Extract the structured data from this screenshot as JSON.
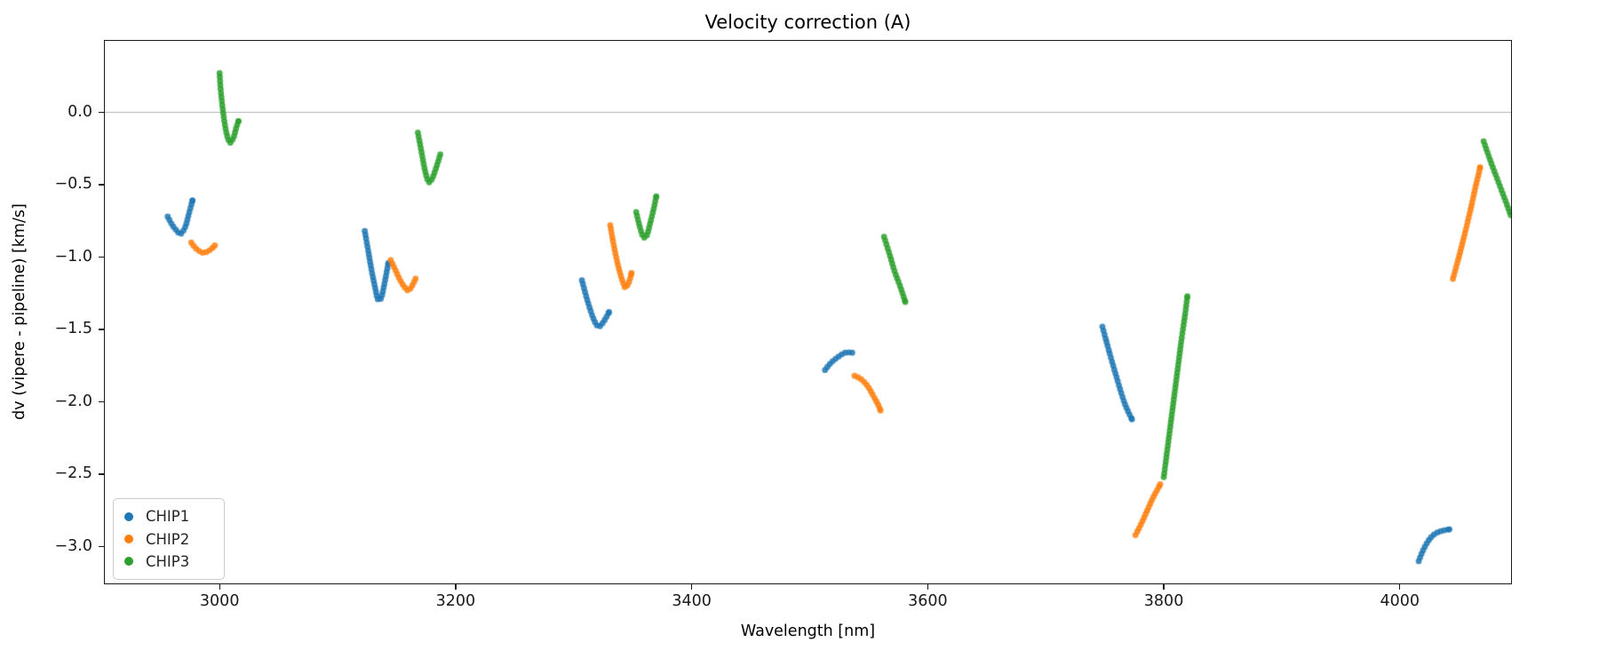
{
  "chart_data": {
    "type": "scatter",
    "title": "Velocity correction (A)",
    "xlabel": "Wavelength [nm]",
    "ylabel": "dv (vipere - pipeline) [km/s]",
    "xlim": [
      2902,
      4095
    ],
    "ylim": [
      -3.26,
      0.5
    ],
    "xtick_values": [
      3000,
      3200,
      3400,
      3600,
      3800,
      4000
    ],
    "xtick_labels": [
      "3000",
      "3200",
      "3400",
      "3600",
      "3800",
      "4000"
    ],
    "ytick_values": [
      0,
      -0.5,
      -1,
      -1.5,
      -2,
      -2.5,
      -3
    ],
    "ytick_labels": [
      "0.0",
      "−0.5",
      "−1.0",
      "−1.5",
      "−2.0",
      "−2.5",
      "−3.0"
    ],
    "grid": "off",
    "zero_line": {
      "y": 0,
      "color": "#b0b0b0"
    },
    "marker": {
      "radius": 3.4,
      "alpha": 0.85,
      "spacing_px": 4.2
    },
    "legend": {
      "position": "lower left",
      "labels": [
        "CHIP1",
        "CHIP2",
        "CHIP3"
      ]
    },
    "series": [
      {
        "name": "CHIP1",
        "color": "#1f77b4",
        "segments": [
          [
            [
              2956,
              -0.72
            ],
            [
              2960,
              -0.78
            ],
            [
              2964,
              -0.82
            ],
            [
              2967,
              -0.84
            ],
            [
              2971,
              -0.79
            ],
            [
              2974,
              -0.7
            ],
            [
              2977,
              -0.61
            ]
          ],
          [
            [
              3123,
              -0.82
            ],
            [
              3126,
              -0.96
            ],
            [
              3129,
              -1.1
            ],
            [
              3132,
              -1.22
            ],
            [
              3134,
              -1.29
            ],
            [
              3137,
              -1.28
            ],
            [
              3140,
              -1.17
            ],
            [
              3143,
              -1.04
            ]
          ],
          [
            [
              3307,
              -1.16
            ],
            [
              3312,
              -1.31
            ],
            [
              3317,
              -1.43
            ],
            [
              3321,
              -1.48
            ],
            [
              3325,
              -1.45
            ],
            [
              3330,
              -1.38
            ]
          ],
          [
            [
              3513,
              -1.78
            ],
            [
              3518,
              -1.73
            ],
            [
              3524,
              -1.69
            ],
            [
              3530,
              -1.66
            ],
            [
              3536,
              -1.66
            ]
          ],
          [
            [
              3748,
              -1.48
            ],
            [
              3754,
              -1.66
            ],
            [
              3760,
              -1.83
            ],
            [
              3766,
              -1.99
            ],
            [
              3770,
              -2.07
            ],
            [
              3773,
              -2.12
            ]
          ],
          [
            [
              4016,
              -3.1
            ],
            [
              4020,
              -3.02
            ],
            [
              4025,
              -2.95
            ],
            [
              4030,
              -2.91
            ],
            [
              4036,
              -2.89
            ],
            [
              4042,
              -2.88
            ]
          ]
        ]
      },
      {
        "name": "CHIP2",
        "color": "#ff7f0e",
        "segments": [
          [
            [
              2976,
              -0.9
            ],
            [
              2980,
              -0.94
            ],
            [
              2986,
              -0.97
            ],
            [
              2992,
              -0.95
            ],
            [
              2996,
              -0.92
            ]
          ],
          [
            [
              3145,
              -1.02
            ],
            [
              3149,
              -1.09
            ],
            [
              3153,
              -1.16
            ],
            [
              3157,
              -1.21
            ],
            [
              3160,
              -1.23
            ],
            [
              3163,
              -1.2
            ],
            [
              3166,
              -1.15
            ]
          ],
          [
            [
              3331,
              -0.78
            ],
            [
              3334,
              -0.92
            ],
            [
              3338,
              -1.07
            ],
            [
              3342,
              -1.18
            ],
            [
              3344,
              -1.21
            ],
            [
              3347,
              -1.17
            ],
            [
              3349,
              -1.11
            ]
          ],
          [
            [
              3538,
              -1.82
            ],
            [
              3543,
              -1.84
            ],
            [
              3549,
              -1.89
            ],
            [
              3554,
              -1.96
            ],
            [
              3558,
              -2.02
            ],
            [
              3560,
              -2.06
            ]
          ],
          [
            [
              3776,
              -2.92
            ],
            [
              3781,
              -2.84
            ],
            [
              3786,
              -2.75
            ],
            [
              3791,
              -2.66
            ],
            [
              3795,
              -2.6
            ],
            [
              3797,
              -2.57
            ]
          ],
          [
            [
              4045,
              -1.15
            ],
            [
              4050,
              -1.0
            ],
            [
              4055,
              -0.84
            ],
            [
              4060,
              -0.67
            ],
            [
              4064,
              -0.52
            ],
            [
              4067,
              -0.42
            ],
            [
              4068,
              -0.38
            ]
          ]
        ]
      },
      {
        "name": "CHIP3",
        "color": "#2ca02c",
        "segments": [
          [
            [
              3000,
              0.27
            ],
            [
              3001,
              0.15
            ],
            [
              3003,
              0.0
            ],
            [
              3005,
              -0.11
            ],
            [
              3007,
              -0.18
            ],
            [
              3009,
              -0.21
            ],
            [
              3012,
              -0.17
            ],
            [
              3014,
              -0.11
            ],
            [
              3016,
              -0.06
            ]
          ],
          [
            [
              3168,
              -0.14
            ],
            [
              3171,
              -0.27
            ],
            [
              3174,
              -0.4
            ],
            [
              3177,
              -0.48
            ],
            [
              3180,
              -0.46
            ],
            [
              3184,
              -0.37
            ],
            [
              3187,
              -0.29
            ]
          ],
          [
            [
              3353,
              -0.69
            ],
            [
              3356,
              -0.79
            ],
            [
              3359,
              -0.86
            ],
            [
              3362,
              -0.85
            ],
            [
              3365,
              -0.76
            ],
            [
              3368,
              -0.66
            ],
            [
              3370,
              -0.58
            ]
          ],
          [
            [
              3563,
              -0.86
            ],
            [
              3568,
              -0.99
            ],
            [
              3572,
              -1.1
            ],
            [
              3577,
              -1.21
            ],
            [
              3581,
              -1.31
            ]
          ],
          [
            [
              3800,
              -2.52
            ],
            [
              3803,
              -2.33
            ],
            [
              3806,
              -2.14
            ],
            [
              3809,
              -1.95
            ],
            [
              3812,
              -1.76
            ],
            [
              3815,
              -1.57
            ],
            [
              3818,
              -1.4
            ],
            [
              3820,
              -1.27
            ]
          ],
          [
            [
              4071,
              -0.2
            ],
            [
              4077,
              -0.34
            ],
            [
              4083,
              -0.47
            ],
            [
              4089,
              -0.6
            ],
            [
              4094,
              -0.71
            ]
          ]
        ]
      }
    ]
  }
}
